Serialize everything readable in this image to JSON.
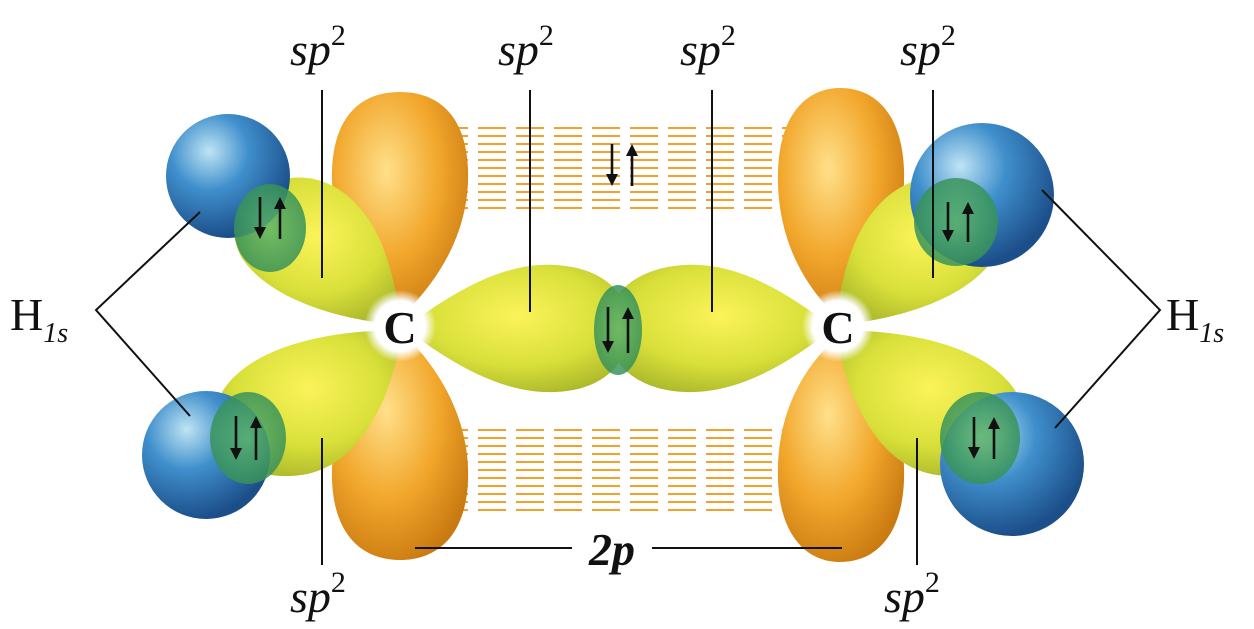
{
  "labels": {
    "sp2_base": "sp",
    "sp2_exp": "2",
    "h1s_base": "H",
    "h1s_sub": "1s",
    "carbon": "C",
    "two_p": "2p"
  },
  "colors": {
    "p_orbital": "#f2a72c",
    "sp2_orbital": "#d9e03a",
    "hydrogen_1s": "#2f7dc2",
    "overlap": "#3f9f5a",
    "pi_dashes": "#f0a12e"
  }
}
